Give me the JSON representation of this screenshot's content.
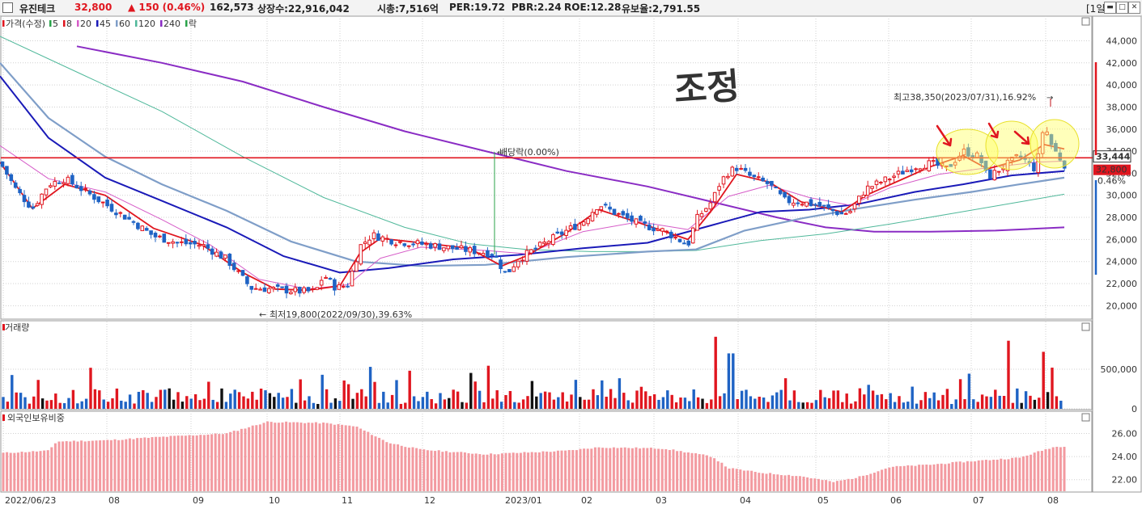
{
  "header": {
    "stock_name": "유진테크",
    "price": "32,800",
    "change": "▲ 150 (0.46%)",
    "volume": "162,573",
    "shares": "상장수:22,916,042",
    "market_cap": "시총:7,516억",
    "per": "PER:19.72",
    "pbr": "PBR:2.24",
    "roe": "ROE:12.28",
    "foreign_holding": "유보율:2,791.55",
    "period": "[1일]"
  },
  "annotation": {
    "handwritten": "조정",
    "ex_dividend": "배당락(0.00%)",
    "high_label": "최고38,350(2023/07/31),16.92%",
    "low_label": "최저19,800(2022/09/30),39.63%"
  },
  "colors": {
    "up": "#e0161f",
    "down": "#1f63c4",
    "ma5": "#e0161f",
    "ma20": "#d65cc8",
    "ma45": "#1a1ab8",
    "ma60": "#7f9ec8",
    "ma120": "#4fb89a",
    "ma240": "#8a2cc4",
    "foreign": "#f39aa0"
  },
  "chart_data": [
    {
      "type": "line",
      "name": "price",
      "legend": [
        {
          "label": "가격(수정)",
          "color": "#e0161f"
        },
        {
          "label": "5",
          "color": "#2aa34a"
        },
        {
          "label": "8",
          "color": "#e0161f"
        },
        {
          "label": "20",
          "color": "#d65cc8"
        },
        {
          "label": "45",
          "color": "#1a1ab8"
        },
        {
          "label": "60",
          "color": "#7f9ec8"
        },
        {
          "label": "120",
          "color": "#4fb89a"
        },
        {
          "label": "240",
          "color": "#8a2cc4"
        },
        {
          "label": "락",
          "color": "#2aa34a"
        }
      ],
      "x_labels": [
        "2022/06/23",
        "08",
        "09",
        "10",
        "11",
        "12",
        "2023/01",
        "02",
        "03",
        "04",
        "05",
        "06",
        "07",
        "08"
      ],
      "y_ticks": [
        20000,
        22000,
        24000,
        26000,
        28000,
        30000,
        32000,
        34000,
        36000,
        38000,
        40000,
        42000,
        44000
      ],
      "y_tick_labels": [
        "20,000",
        "22,000",
        "24,000",
        "26,000",
        "28,000",
        "30,000",
        "32,000",
        "34,000",
        "36,000",
        "38,000",
        "40,000",
        "42,000",
        "44,000"
      ],
      "ylim": [
        19000,
        45500
      ],
      "current_price": 33444,
      "current_price_label": "33,444",
      "last_label": "32,800",
      "last_change_label": "0.46%",
      "resistance": 33400,
      "close_anchors": [
        [
          0,
          33000
        ],
        [
          20,
          30500
        ],
        [
          40,
          28800
        ],
        [
          60,
          31000
        ],
        [
          80,
          31500
        ],
        [
          100,
          30600
        ],
        [
          130,
          29200
        ],
        [
          160,
          27800
        ],
        [
          190,
          26300
        ],
        [
          220,
          25700
        ],
        [
          250,
          25500
        ],
        [
          280,
          24200
        ],
        [
          310,
          21600
        ],
        [
          340,
          21500
        ],
        [
          370,
          21300
        ],
        [
          390,
          21300
        ],
        [
          400,
          22800
        ],
        [
          415,
          21600
        ],
        [
          430,
          21900
        ],
        [
          445,
          25400
        ],
        [
          460,
          26400
        ],
        [
          490,
          25800
        ],
        [
          520,
          25600
        ],
        [
          550,
          25300
        ],
        [
          580,
          25000
        ],
        [
          610,
          24700
        ],
        [
          625,
          22800
        ],
        [
          640,
          24200
        ],
        [
          660,
          25100
        ],
        [
          690,
          26400
        ],
        [
          720,
          27600
        ],
        [
          740,
          29200
        ],
        [
          760,
          28400
        ],
        [
          790,
          27400
        ],
        [
          820,
          26800
        ],
        [
          850,
          25500
        ],
        [
          860,
          27800
        ],
        [
          880,
          29500
        ],
        [
          890,
          31200
        ],
        [
          900,
          32100
        ],
        [
          910,
          32500
        ],
        [
          930,
          31600
        ],
        [
          950,
          31000
        ],
        [
          970,
          29500
        ],
        [
          990,
          29400
        ],
        [
          1010,
          29100
        ],
        [
          1040,
          28300
        ],
        [
          1050,
          28500
        ],
        [
          1070,
          30600
        ],
        [
          1100,
          31600
        ],
        [
          1130,
          32600
        ],
        [
          1150,
          32900
        ],
        [
          1170,
          32400
        ],
        [
          1190,
          34000
        ],
        [
          1210,
          33500
        ],
        [
          1220,
          31600
        ],
        [
          1240,
          32600
        ],
        [
          1260,
          33600
        ],
        [
          1280,
          32300
        ],
        [
          1290,
          36500
        ],
        [
          1300,
          34400
        ],
        [
          1315,
          32800
        ]
      ],
      "ma_anchors": {
        "ma5": [
          [
            0,
            33000
          ],
          [
            40,
            28800
          ],
          [
            80,
            31000
          ],
          [
            130,
            30000
          ],
          [
            190,
            27000
          ],
          [
            250,
            25500
          ],
          [
            300,
            23000
          ],
          [
            340,
            21500
          ],
          [
            380,
            21400
          ],
          [
            420,
            21800
          ],
          [
            445,
            24800
          ],
          [
            470,
            26100
          ],
          [
            520,
            25700
          ],
          [
            580,
            25200
          ],
          [
            620,
            23600
          ],
          [
            650,
            24500
          ],
          [
            700,
            26600
          ],
          [
            740,
            28700
          ],
          [
            790,
            27500
          ],
          [
            850,
            26000
          ],
          [
            880,
            28700
          ],
          [
            910,
            31900
          ],
          [
            950,
            31200
          ],
          [
            990,
            29400
          ],
          [
            1040,
            28500
          ],
          [
            1070,
            30000
          ],
          [
            1110,
            31300
          ],
          [
            1150,
            32600
          ],
          [
            1190,
            33600
          ],
          [
            1220,
            32400
          ],
          [
            1260,
            33200
          ],
          [
            1290,
            34600
          ],
          [
            1315,
            34200
          ]
        ],
        "ma20": [
          [
            0,
            34500
          ],
          [
            60,
            31500
          ],
          [
            130,
            30300
          ],
          [
            200,
            27800
          ],
          [
            260,
            25500
          ],
          [
            320,
            22400
          ],
          [
            380,
            21500
          ],
          [
            430,
            21900
          ],
          [
            470,
            24300
          ],
          [
            520,
            25300
          ],
          [
            600,
            25000
          ],
          [
            650,
            24700
          ],
          [
            720,
            26700
          ],
          [
            790,
            27600
          ],
          [
            850,
            26900
          ],
          [
            900,
            29900
          ],
          [
            950,
            30900
          ],
          [
            1000,
            29800
          ],
          [
            1050,
            29100
          ],
          [
            1100,
            30700
          ],
          [
            1160,
            31900
          ],
          [
            1220,
            32500
          ],
          [
            1280,
            33000
          ],
          [
            1315,
            33100
          ]
        ],
        "ma45": [
          [
            0,
            40800
          ],
          [
            60,
            35200
          ],
          [
            130,
            31600
          ],
          [
            200,
            29500
          ],
          [
            280,
            27100
          ],
          [
            350,
            24500
          ],
          [
            420,
            23000
          ],
          [
            480,
            23400
          ],
          [
            560,
            24200
          ],
          [
            640,
            24600
          ],
          [
            720,
            25200
          ],
          [
            800,
            25700
          ],
          [
            880,
            27300
          ],
          [
            940,
            28500
          ],
          [
            1000,
            28700
          ],
          [
            1060,
            29200
          ],
          [
            1130,
            30300
          ],
          [
            1190,
            31000
          ],
          [
            1250,
            31800
          ],
          [
            1315,
            32200
          ]
        ],
        "ma60": [
          [
            0,
            42000
          ],
          [
            60,
            37000
          ],
          [
            130,
            33500
          ],
          [
            200,
            31000
          ],
          [
            280,
            28600
          ],
          [
            360,
            25800
          ],
          [
            440,
            24000
          ],
          [
            520,
            23600
          ],
          [
            600,
            23700
          ],
          [
            700,
            24400
          ],
          [
            800,
            24900
          ],
          [
            860,
            25100
          ],
          [
            920,
            26800
          ],
          [
            990,
            27900
          ],
          [
            1060,
            28800
          ],
          [
            1130,
            29600
          ],
          [
            1200,
            30300
          ],
          [
            1260,
            31000
          ],
          [
            1315,
            31600
          ]
        ],
        "ma120": [
          [
            0,
            44400
          ],
          [
            100,
            41000
          ],
          [
            200,
            37600
          ],
          [
            300,
            33500
          ],
          [
            400,
            29800
          ],
          [
            500,
            27100
          ],
          [
            580,
            25600
          ],
          [
            650,
            25100
          ],
          [
            730,
            24900
          ],
          [
            800,
            24900
          ],
          [
            860,
            25000
          ],
          [
            940,
            25900
          ],
          [
            1020,
            26500
          ],
          [
            1100,
            27400
          ],
          [
            1180,
            28400
          ],
          [
            1260,
            29400
          ],
          [
            1315,
            30100
          ]
        ],
        "ma240": [
          [
            95,
            43500
          ],
          [
            200,
            42000
          ],
          [
            300,
            40300
          ],
          [
            400,
            38000
          ],
          [
            500,
            35800
          ],
          [
            600,
            34000
          ],
          [
            700,
            32200
          ],
          [
            800,
            30800
          ],
          [
            880,
            29400
          ],
          [
            960,
            28000
          ],
          [
            1020,
            27100
          ],
          [
            1080,
            26700
          ],
          [
            1150,
            26700
          ],
          [
            1230,
            26800
          ],
          [
            1315,
            27100
          ]
        ]
      }
    },
    {
      "type": "bar",
      "name": "거래량",
      "y_ticks": [
        0,
        500000
      ],
      "y_tick_labels": [
        "0",
        "500,000"
      ],
      "ylim": [
        0,
        1000000
      ],
      "spikes": [
        [
          885,
          910000
        ],
        [
          903,
          700000
        ],
        [
          1245,
          860000
        ],
        [
          1287,
          720000
        ],
        [
          1302,
          520000
        ],
        [
          455,
          530000
        ],
        [
          400,
          430000
        ]
      ]
    },
    {
      "type": "bar",
      "name": "외국인보유비중",
      "y_ticks": [
        22,
        24,
        26
      ],
      "y_tick_labels": [
        "22.00",
        "24.00",
        "26.00"
      ],
      "ylim": [
        21,
        27.5
      ],
      "anchors": [
        [
          0,
          24.3
        ],
        [
          60,
          24.5
        ],
        [
          70,
          25.3
        ],
        [
          130,
          25.4
        ],
        [
          200,
          25.7
        ],
        [
          280,
          26.0
        ],
        [
          330,
          27.0
        ],
        [
          400,
          26.9
        ],
        [
          440,
          26.6
        ],
        [
          480,
          25.2
        ],
        [
          520,
          24.6
        ],
        [
          600,
          24.2
        ],
        [
          700,
          24.5
        ],
        [
          740,
          24.8
        ],
        [
          820,
          24.7
        ],
        [
          880,
          24.0
        ],
        [
          900,
          23.0
        ],
        [
          940,
          22.6
        ],
        [
          990,
          22.3
        ],
        [
          1030,
          21.8
        ],
        [
          1060,
          22.2
        ],
        [
          1100,
          23.1
        ],
        [
          1150,
          23.3
        ],
        [
          1200,
          23.6
        ],
        [
          1260,
          23.9
        ],
        [
          1300,
          24.8
        ],
        [
          1315,
          24.9
        ]
      ]
    }
  ]
}
